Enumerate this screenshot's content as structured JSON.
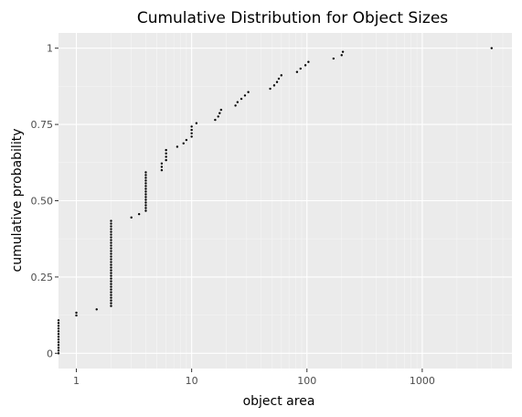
{
  "chart_data": {
    "type": "scatter",
    "title": "Cumulative Distribution for Object Sizes",
    "xlabel": "object area",
    "ylabel": "cumulative probability",
    "x_scale": "log10",
    "xlim": [
      0.7,
      6000
    ],
    "ylim": [
      -0.05,
      1.05
    ],
    "x_ticks": [
      {
        "value": 1,
        "label": "1"
      },
      {
        "value": 10,
        "label": "10"
      },
      {
        "value": 100,
        "label": "100"
      },
      {
        "value": 1000,
        "label": "1000"
      }
    ],
    "y_ticks": [
      {
        "value": 0,
        "label": "0"
      },
      {
        "value": 0.25,
        "label": "0.25"
      },
      {
        "value": 0.5,
        "label": "0.50"
      },
      {
        "value": 0.75,
        "label": "0.75"
      },
      {
        "value": 1,
        "label": "1"
      }
    ],
    "grid": true,
    "legend": "none",
    "colors": {
      "panel": "#ebebeb",
      "grid_major": "#ffffff",
      "grid_minor": "#f5f5f5",
      "point": "#000000"
    },
    "points": [
      {
        "x": 0.7,
        "y": 0.0
      },
      {
        "x": 0.7,
        "y": 0.009
      },
      {
        "x": 0.7,
        "y": 0.018
      },
      {
        "x": 0.7,
        "y": 0.027
      },
      {
        "x": 0.7,
        "y": 0.036
      },
      {
        "x": 0.7,
        "y": 0.045
      },
      {
        "x": 0.7,
        "y": 0.054
      },
      {
        "x": 0.7,
        "y": 0.063
      },
      {
        "x": 0.7,
        "y": 0.072
      },
      {
        "x": 0.7,
        "y": 0.081
      },
      {
        "x": 0.7,
        "y": 0.09
      },
      {
        "x": 0.7,
        "y": 0.099
      },
      {
        "x": 0.7,
        "y": 0.108
      },
      {
        "x": 1,
        "y": 0.124
      },
      {
        "x": 1,
        "y": 0.133
      },
      {
        "x": 1.5,
        "y": 0.144
      },
      {
        "x": 2,
        "y": 0.155
      },
      {
        "x": 2,
        "y": 0.164
      },
      {
        "x": 2,
        "y": 0.173
      },
      {
        "x": 2,
        "y": 0.182
      },
      {
        "x": 2,
        "y": 0.191
      },
      {
        "x": 2,
        "y": 0.2
      },
      {
        "x": 2,
        "y": 0.209
      },
      {
        "x": 2,
        "y": 0.218
      },
      {
        "x": 2,
        "y": 0.227
      },
      {
        "x": 2,
        "y": 0.236
      },
      {
        "x": 2,
        "y": 0.245
      },
      {
        "x": 2,
        "y": 0.254
      },
      {
        "x": 2,
        "y": 0.263
      },
      {
        "x": 2,
        "y": 0.272
      },
      {
        "x": 2,
        "y": 0.281
      },
      {
        "x": 2,
        "y": 0.29
      },
      {
        "x": 2,
        "y": 0.299
      },
      {
        "x": 2,
        "y": 0.308
      },
      {
        "x": 2,
        "y": 0.317
      },
      {
        "x": 2,
        "y": 0.326
      },
      {
        "x": 2,
        "y": 0.335
      },
      {
        "x": 2,
        "y": 0.344
      },
      {
        "x": 2,
        "y": 0.353
      },
      {
        "x": 2,
        "y": 0.362
      },
      {
        "x": 2,
        "y": 0.371
      },
      {
        "x": 2,
        "y": 0.38
      },
      {
        "x": 2,
        "y": 0.389
      },
      {
        "x": 2,
        "y": 0.398
      },
      {
        "x": 2,
        "y": 0.407
      },
      {
        "x": 2,
        "y": 0.416
      },
      {
        "x": 2,
        "y": 0.425
      },
      {
        "x": 2,
        "y": 0.434
      },
      {
        "x": 3,
        "y": 0.445
      },
      {
        "x": 3.5,
        "y": 0.456
      },
      {
        "x": 4,
        "y": 0.467
      },
      {
        "x": 4,
        "y": 0.476
      },
      {
        "x": 4,
        "y": 0.485
      },
      {
        "x": 4,
        "y": 0.494
      },
      {
        "x": 4,
        "y": 0.503
      },
      {
        "x": 4,
        "y": 0.512
      },
      {
        "x": 4,
        "y": 0.521
      },
      {
        "x": 4,
        "y": 0.53
      },
      {
        "x": 4,
        "y": 0.539
      },
      {
        "x": 4,
        "y": 0.548
      },
      {
        "x": 4,
        "y": 0.557
      },
      {
        "x": 4,
        "y": 0.566
      },
      {
        "x": 4,
        "y": 0.575
      },
      {
        "x": 4,
        "y": 0.584
      },
      {
        "x": 4,
        "y": 0.593
      },
      {
        "x": 5.5,
        "y": 0.6
      },
      {
        "x": 5.5,
        "y": 0.611
      },
      {
        "x": 5.5,
        "y": 0.622
      },
      {
        "x": 6,
        "y": 0.633
      },
      {
        "x": 6,
        "y": 0.644
      },
      {
        "x": 6,
        "y": 0.655
      },
      {
        "x": 6,
        "y": 0.666
      },
      {
        "x": 7.5,
        "y": 0.677
      },
      {
        "x": 8.5,
        "y": 0.688
      },
      {
        "x": 9,
        "y": 0.699
      },
      {
        "x": 10,
        "y": 0.71
      },
      {
        "x": 10,
        "y": 0.721
      },
      {
        "x": 10,
        "y": 0.732
      },
      {
        "x": 10,
        "y": 0.743
      },
      {
        "x": 11,
        "y": 0.754
      },
      {
        "x": 16,
        "y": 0.765
      },
      {
        "x": 17,
        "y": 0.776
      },
      {
        "x": 17.5,
        "y": 0.787
      },
      {
        "x": 18,
        "y": 0.798
      },
      {
        "x": 24,
        "y": 0.812
      },
      {
        "x": 25,
        "y": 0.823
      },
      {
        "x": 27,
        "y": 0.834
      },
      {
        "x": 29,
        "y": 0.845
      },
      {
        "x": 31,
        "y": 0.856
      },
      {
        "x": 48,
        "y": 0.867
      },
      {
        "x": 52,
        "y": 0.878
      },
      {
        "x": 55,
        "y": 0.889
      },
      {
        "x": 57,
        "y": 0.9
      },
      {
        "x": 60,
        "y": 0.911
      },
      {
        "x": 82,
        "y": 0.922
      },
      {
        "x": 88,
        "y": 0.933
      },
      {
        "x": 97,
        "y": 0.944
      },
      {
        "x": 103,
        "y": 0.955
      },
      {
        "x": 170,
        "y": 0.966
      },
      {
        "x": 200,
        "y": 0.977
      },
      {
        "x": 205,
        "y": 0.988
      },
      {
        "x": 4000,
        "y": 1.0
      }
    ]
  }
}
